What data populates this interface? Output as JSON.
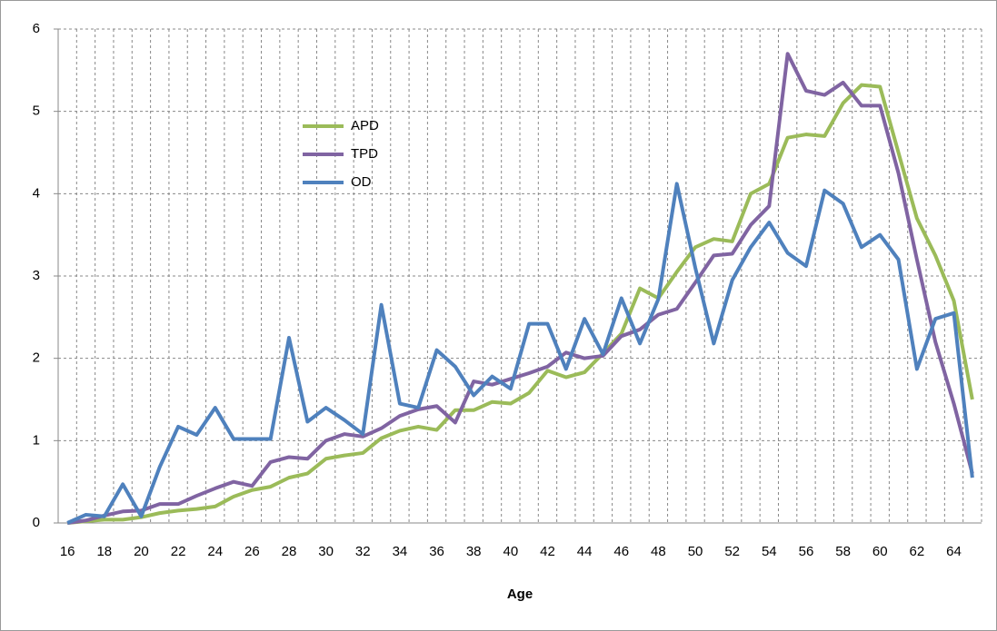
{
  "chart_data": {
    "type": "line",
    "x_label": "Age",
    "categories": [
      "16",
      null,
      "18",
      null,
      "20",
      null,
      "22",
      null,
      "24",
      null,
      "26",
      null,
      "28",
      null,
      "30",
      null,
      "32",
      null,
      "34",
      null,
      "36",
      null,
      "38",
      null,
      "40",
      null,
      "42",
      null,
      "44",
      null,
      "46",
      null,
      "48",
      null,
      "50",
      null,
      "52",
      null,
      "54",
      null,
      "56",
      null,
      "58",
      null,
      "60",
      null,
      "62",
      null,
      "64",
      null
    ],
    "series": [
      {
        "name": "APD",
        "color": "#9bbb59",
        "values": [
          0,
          0.02,
          0.04,
          0.04,
          0.07,
          0.12,
          0.15,
          0.17,
          0.2,
          0.32,
          0.4,
          0.44,
          0.55,
          0.6,
          0.78,
          0.82,
          0.85,
          1.03,
          1.12,
          1.17,
          1.13,
          1.37,
          1.37,
          1.47,
          1.45,
          1.58,
          1.85,
          1.77,
          1.83,
          2.06,
          2.3,
          2.85,
          2.73,
          3.05,
          3.35,
          3.45,
          3.42,
          4.0,
          4.12,
          4.68,
          4.72,
          4.7,
          5.1,
          5.32,
          5.3,
          4.5,
          3.7,
          3.25,
          2.7,
          1.5
        ]
      },
      {
        "name": "TPD",
        "color": "#8064a2",
        "values": [
          0,
          0.03,
          0.09,
          0.14,
          0.15,
          0.23,
          0.23,
          0.33,
          0.42,
          0.5,
          0.45,
          0.74,
          0.8,
          0.78,
          1.0,
          1.08,
          1.05,
          1.15,
          1.3,
          1.38,
          1.42,
          1.22,
          1.72,
          1.68,
          1.75,
          1.82,
          1.9,
          2.07,
          2.0,
          2.03,
          2.27,
          2.35,
          2.53,
          2.6,
          2.92,
          3.25,
          3.27,
          3.62,
          3.85,
          5.7,
          5.25,
          5.2,
          5.35,
          5.07,
          5.07,
          4.25,
          3.2,
          2.2,
          1.45,
          0.6
        ]
      },
      {
        "name": "OD",
        "color": "#4f81bd",
        "values": [
          0,
          0.1,
          0.08,
          0.47,
          0.08,
          0.68,
          1.17,
          1.07,
          1.4,
          1.02,
          1.02,
          1.02,
          2.25,
          1.23,
          1.4,
          1.25,
          1.08,
          2.65,
          1.45,
          1.4,
          2.1,
          1.9,
          1.55,
          1.78,
          1.63,
          2.42,
          2.42,
          1.87,
          2.48,
          2.05,
          2.73,
          2.18,
          2.72,
          4.12,
          3.1,
          2.18,
          2.95,
          3.35,
          3.65,
          3.28,
          3.12,
          4.04,
          3.88,
          3.35,
          3.5,
          3.2,
          1.87,
          2.48,
          2.55,
          0.55
        ]
      }
    ],
    "ylim": [
      0,
      6
    ],
    "yticks": [
      0,
      1,
      2,
      3,
      4,
      5,
      6
    ],
    "grid": true
  }
}
